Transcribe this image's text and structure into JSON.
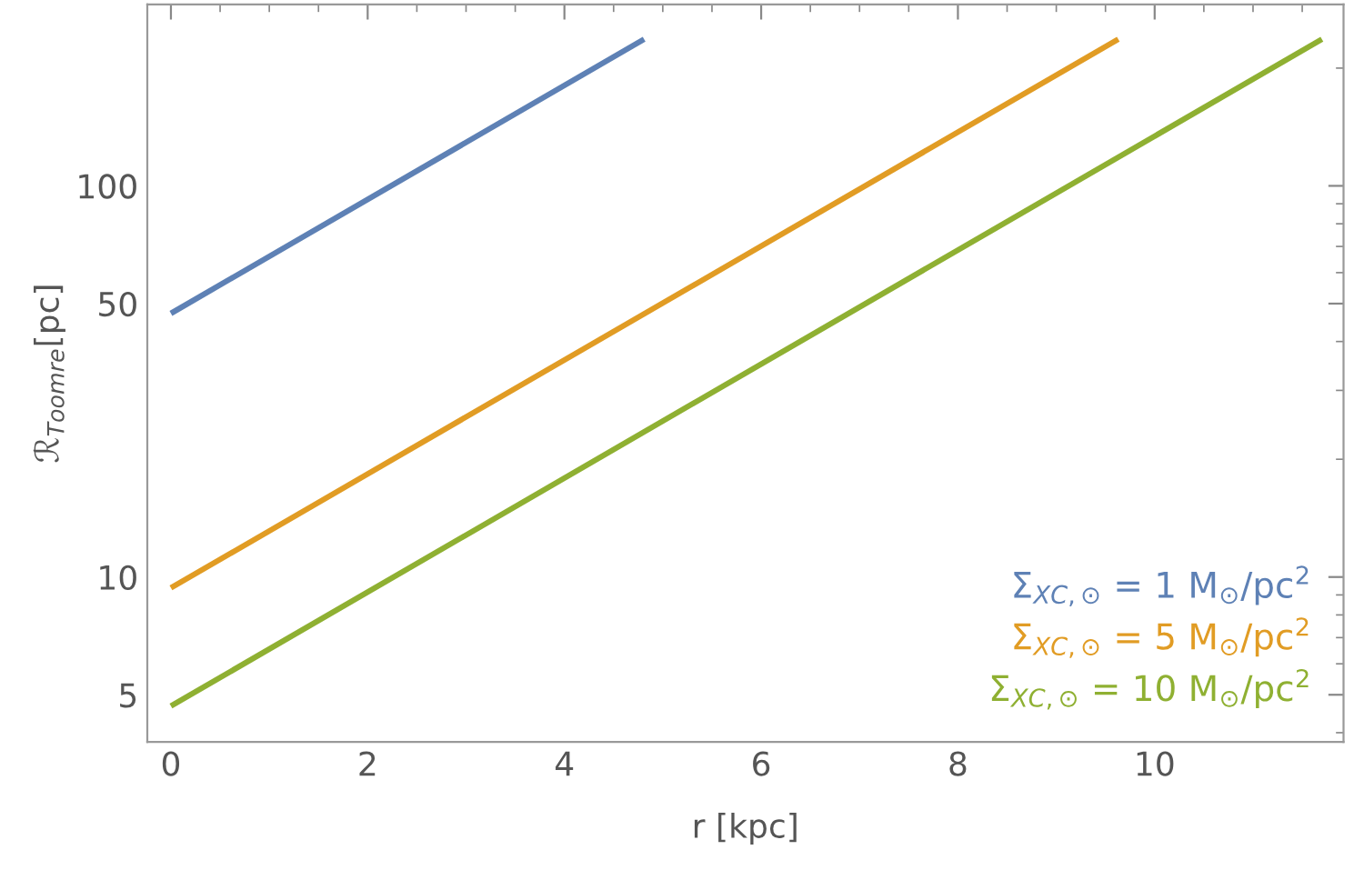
{
  "chart_data": {
    "type": "line",
    "xlabel": "r [kpc]",
    "ylabel": "ℛ$_{Toomre}$[pc]",
    "log": "y",
    "xlim": [
      -0.24,
      11.92
    ],
    "xticks": [
      0,
      2,
      4,
      6,
      8,
      10
    ],
    "ylim": [
      3.79,
      291
    ],
    "yticks": [
      5,
      10,
      50,
      100
    ],
    "grid": false,
    "legend": "bottom right",
    "line_style": "solid",
    "marker": "none",
    "series": [
      {
        "name": "Σ$_{XC,⊙}$ = 1 M$_{⊙}$/pc$^{2}$",
        "color": "#5e81b5",
        "x": [
          0,
          4.81
        ],
        "values": [
          47.2,
          237
        ]
      },
      {
        "name": "Σ$_{XC,⊙}$ = 5 M$_{⊙}$/pc$^{2}$",
        "color": "#e19c24",
        "x": [
          0,
          9.63
        ],
        "values": [
          9.38,
          237
        ]
      },
      {
        "name": "Σ$_{XC,⊙}$ = 10 M$_{⊙}$/pc$^{2}$",
        "color": "#8fb032",
        "x": [
          0,
          11.7
        ],
        "values": [
          4.68,
          237
        ]
      }
    ]
  }
}
